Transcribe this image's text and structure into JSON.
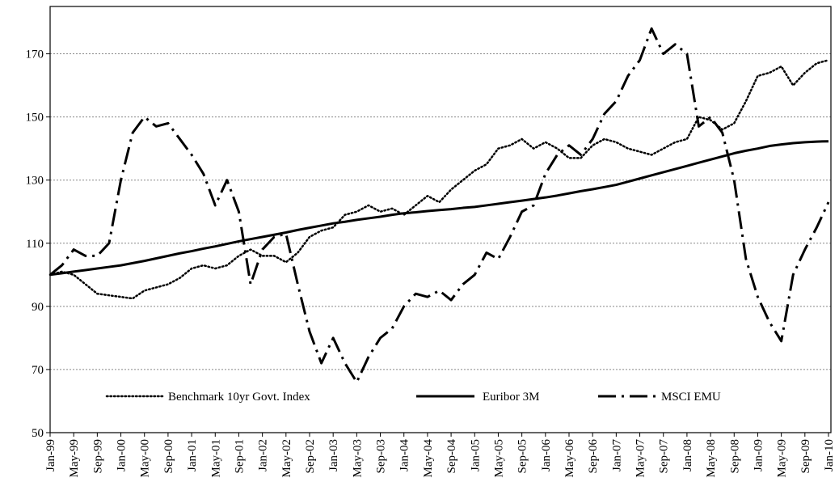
{
  "chart_data": {
    "type": "line",
    "categories": [
      "Jan-99",
      null,
      "May-99",
      null,
      "Sep-99",
      null,
      "Jan-00",
      null,
      "May-00",
      null,
      "Sep-00",
      null,
      "Jan-01",
      null,
      "May-01",
      null,
      "Sep-01",
      null,
      "Jan-02",
      null,
      "May-02",
      null,
      "Sep-02",
      null,
      "Jan-03",
      null,
      "May-03",
      null,
      "Sep-03",
      null,
      "Jan-04",
      null,
      "May-04",
      null,
      "Sep-04",
      null,
      "Jan-05",
      null,
      "May-05",
      null,
      "Sep-05",
      null,
      "Jan-06",
      null,
      "May-06",
      null,
      "Sep-06",
      null,
      "Jan-07",
      null,
      "May-07",
      null,
      "Sep-07",
      null,
      "Jan-08",
      null,
      "May-08",
      null,
      "Sep-08",
      null,
      "Jan-09",
      null,
      "May-09",
      null,
      "Sep-09",
      null,
      "Jan-10"
    ],
    "series": [
      {
        "name": "Benchmark 10yr Govt. Index",
        "color": "#000000",
        "style": "dotted",
        "values": [
          100,
          101,
          100,
          97,
          94,
          93.5,
          93,
          92.5,
          95,
          96,
          97,
          99,
          102,
          103,
          102,
          103,
          106,
          108,
          106,
          106,
          104,
          107,
          112,
          114,
          115,
          119,
          120,
          122,
          120,
          121,
          119,
          122,
          125,
          123,
          127,
          130,
          133,
          135,
          140,
          141,
          143,
          140,
          142,
          140,
          137,
          137,
          141,
          143,
          142,
          140,
          139,
          138,
          140,
          142,
          143,
          150,
          149,
          146,
          148,
          155,
          163,
          164,
          166,
          160,
          164,
          167,
          168
        ]
      },
      {
        "name": "Euribor 3M",
        "color": "#000000",
        "style": "solid",
        "values": [
          100,
          100.5,
          101,
          101.5,
          102,
          102.5,
          103,
          103.7,
          104.4,
          105.2,
          106,
          106.8,
          107.5,
          108.3,
          109,
          109.8,
          110.6,
          111.3,
          112,
          112.7,
          113.4,
          114.2,
          114.9,
          115.6,
          116.3,
          116.8,
          117.4,
          117.9,
          118.4,
          119,
          119.5,
          119.8,
          120.2,
          120.5,
          120.8,
          121.2,
          121.5,
          122,
          122.5,
          123,
          123.5,
          124,
          124.5,
          125.1,
          125.8,
          126.5,
          127.1,
          127.8,
          128.5,
          129.5,
          130.5,
          131.5,
          132.5,
          133.5,
          134.5,
          135.5,
          136.5,
          137.5,
          138.5,
          139.3,
          140,
          140.8,
          141.3,
          141.7,
          142,
          142.2,
          142.3
        ]
      },
      {
        "name": "MSCI EMU",
        "color": "#000000",
        "style": "dashdot",
        "values": [
          100,
          103,
          108,
          106,
          106,
          110,
          130,
          145,
          150,
          147,
          148,
          143,
          138,
          132,
          122,
          130,
          120,
          97,
          108,
          112,
          113,
          97,
          82,
          72,
          80,
          72,
          66,
          74,
          80,
          83,
          90,
          94,
          93,
          95,
          92,
          97,
          100,
          107,
          105,
          112,
          120,
          122,
          132,
          138,
          141,
          138,
          143,
          151,
          155,
          163,
          168,
          178,
          170,
          173,
          170,
          147,
          150,
          145,
          130,
          105,
          93,
          85,
          79,
          100,
          108,
          115,
          123
        ]
      }
    ],
    "ylim": [
      50,
      185
    ],
    "yticks": [
      50,
      70,
      90,
      110,
      130,
      150,
      170
    ],
    "grid": true,
    "legend": "bottom"
  }
}
